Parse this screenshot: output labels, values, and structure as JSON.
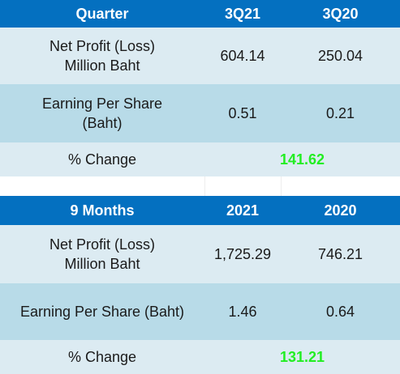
{
  "quarter_table": {
    "headers": [
      "Quarter",
      "3Q21",
      "3Q20"
    ],
    "rows": [
      {
        "label_line1": "Net Profit (Loss)",
        "label_line2": "Million Baht",
        "v1": "604.14",
        "v2": "250.04"
      },
      {
        "label_line1": "Earning Per Share",
        "label_line2": "(Baht)",
        "v1": "0.51",
        "v2": "0.21"
      }
    ],
    "change_label": "% Change",
    "change_value": "141.62"
  },
  "nine_months_table": {
    "headers": [
      "9 Months",
      "2021",
      "2020"
    ],
    "rows": [
      {
        "label_line1": "Net Profit (Loss)",
        "label_line2": "Million Baht",
        "v1": "1,725.29",
        "v2": "746.21"
      },
      {
        "label_line1": "Earning Per Share (Baht)",
        "label_line2": "",
        "v1": "1.46",
        "v2": "0.64"
      }
    ],
    "change_label": "% Change",
    "change_value": "131.21"
  },
  "colors": {
    "header_bg": "#0470c0",
    "row_light": "#dcebf2",
    "row_mid": "#b8dbe8",
    "positive_change": "#22ee22"
  }
}
